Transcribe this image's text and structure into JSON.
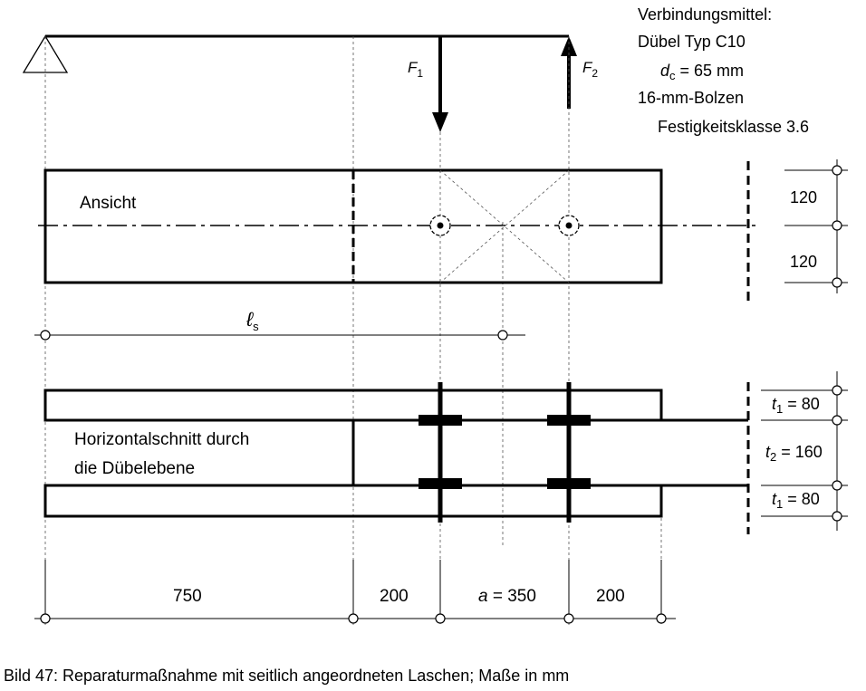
{
  "notes": {
    "line1": "Verbindungsmittel:",
    "line2": "Dübel Typ C10",
    "line3_var": "d",
    "line3_sub": "c",
    "line3_rest": " = 65 mm",
    "line4": "16-mm-Bolzen",
    "line5": "Festigkeitsklasse 3.6"
  },
  "forces": {
    "f1_var": "F",
    "f1_sub": "1",
    "f2_var": "F",
    "f2_sub": "2"
  },
  "view": {
    "label": "Ansicht",
    "dim_upper": "120",
    "dim_lower": "120"
  },
  "ls_label": {
    "var": "ℓ",
    "sub": "s"
  },
  "section": {
    "label_line1": "Horizontalschnitt durch",
    "label_line2": "die Dübelebene",
    "t1_top_var": "t",
    "t1_top_sub": "1",
    "t1_top_val": " = 80",
    "t2_var": "t",
    "t2_sub": "2",
    "t2_val": " = 160",
    "t1_bot_var": "t",
    "t1_bot_sub": "1",
    "t1_bot_val": " = 80"
  },
  "bottom_dims": {
    "d1": "750",
    "d2": "200",
    "d3_var": "a",
    "d3_rest": " = 350",
    "d4": "200"
  },
  "caption": "Bild 47: Reparaturmaßnahme mit seitlich angeordneten Laschen; Maße in mm"
}
